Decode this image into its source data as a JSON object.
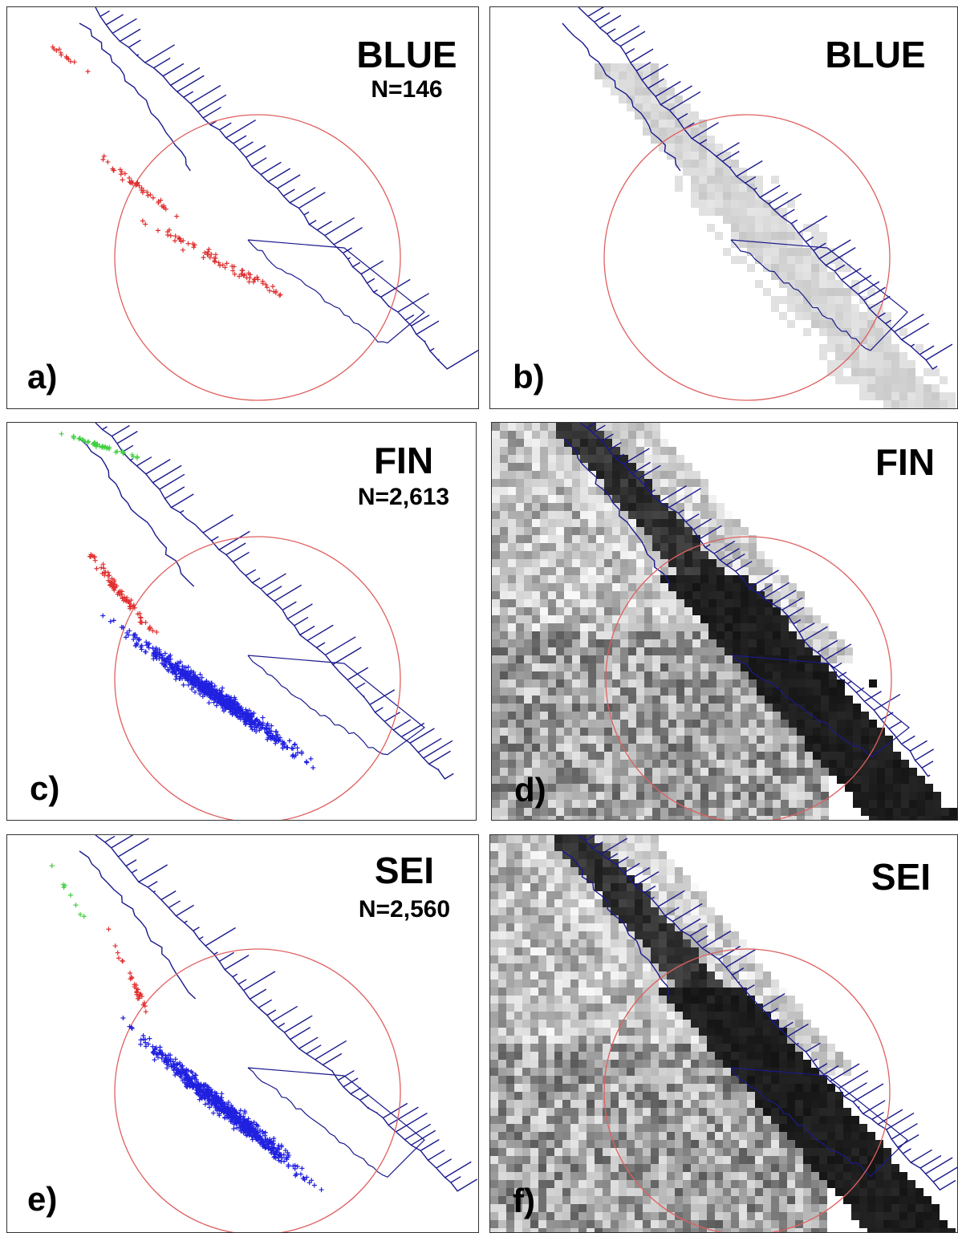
{
  "panels": [
    {
      "label": "a)",
      "title": "BLUE",
      "count": "N=146"
    },
    {
      "label": "b)",
      "title": "BLUE"
    },
    {
      "label": "c)",
      "title": "FIN",
      "count": "N=2,613"
    },
    {
      "label": "d)",
      "title": "FIN"
    },
    {
      "label": "e)",
      "title": "SEI",
      "count": "N=2,560"
    },
    {
      "label": "f)",
      "title": "SEI"
    }
  ]
}
